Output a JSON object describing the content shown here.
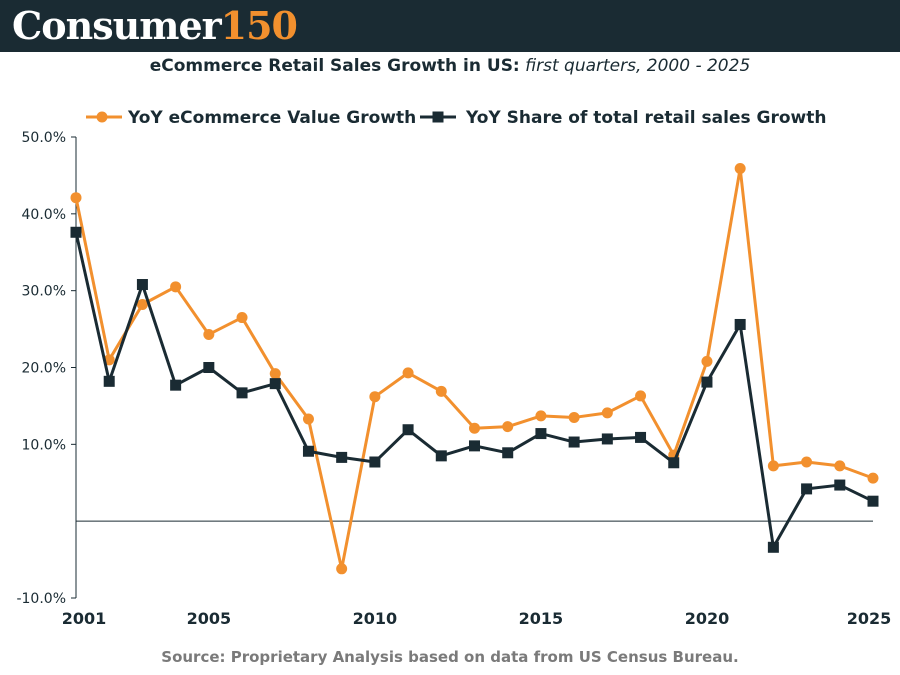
{
  "header": {
    "brand_part1": "Consumer",
    "brand_part2": "150"
  },
  "title": {
    "main": "eCommerce Retail Sales Growth in US:",
    "sub": "first quarters, 2000 - 2025"
  },
  "source": "Source: Proprietary Analysis based on data from US Census Bureau.",
  "colors": {
    "header_bg": "#1a2b33",
    "brand_accent": "#f2902e",
    "series_value": "#f2902e",
    "series_share": "#1a2b33"
  },
  "chart_data": {
    "type": "line",
    "x": [
      2001,
      2002,
      2003,
      2004,
      2005,
      2006,
      2007,
      2008,
      2009,
      2010,
      2011,
      2012,
      2013,
      2014,
      2015,
      2016,
      2017,
      2018,
      2019,
      2020,
      2021,
      2022,
      2023,
      2024,
      2025
    ],
    "series": [
      {
        "name": "YoY eCommerce Value Growth",
        "color": "#f2902e",
        "marker": "circle",
        "values": [
          42.1,
          21.0,
          28.2,
          30.5,
          24.3,
          26.5,
          19.2,
          13.3,
          -6.2,
          16.2,
          19.3,
          16.9,
          12.1,
          12.3,
          13.7,
          13.5,
          14.1,
          16.3,
          8.6,
          20.8,
          45.9,
          7.2,
          7.7,
          7.2,
          5.6
        ]
      },
      {
        "name": "YoY Share of total retail sales Growth",
        "color": "#1a2b33",
        "marker": "square",
        "values": [
          37.6,
          18.2,
          30.8,
          17.7,
          20.0,
          16.7,
          17.9,
          9.1,
          8.3,
          7.7,
          11.9,
          8.5,
          9.8,
          8.9,
          11.4,
          10.3,
          10.7,
          10.9,
          7.6,
          18.1,
          25.6,
          -3.4,
          4.2,
          4.7,
          2.6
        ]
      }
    ],
    "y_ticks": [
      "50.0%",
      "40.0%",
      "30.0%",
      "20.0%",
      "10.0%",
      "-10.0%"
    ],
    "y_tick_values": [
      50,
      40,
      30,
      20,
      10,
      -10
    ],
    "x_ticks": [
      "2001",
      "2005",
      "2010",
      "2015",
      "2020",
      "2025"
    ],
    "x_tick_values": [
      2001,
      2005,
      2010,
      2015,
      2020,
      2025
    ],
    "ylim": [
      -10,
      50
    ],
    "xlim": [
      2001,
      2025
    ],
    "legend_position": "top",
    "grid": false,
    "zero_line": true
  }
}
